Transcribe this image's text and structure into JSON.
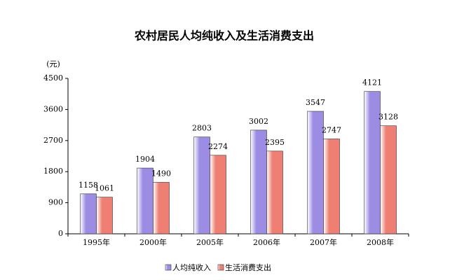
{
  "chart_data": {
    "type": "bar",
    "title": "农村居民人均纯收入及生活消费支出",
    "y_label": "(元)",
    "categories": [
      "1995年",
      "2000年",
      "2005年",
      "2006年",
      "2007年",
      "2008年"
    ],
    "series": [
      {
        "name": "人均纯收入",
        "color": "#9d8ce4",
        "values": [
          1158,
          1904,
          2803,
          3002,
          3547,
          4121
        ]
      },
      {
        "name": "生活消费支出",
        "color": "#ee7f72",
        "values": [
          1061,
          1490,
          2274,
          2395,
          2747,
          3128
        ]
      }
    ],
    "ylim": [
      0,
      4500
    ],
    "yticks": [
      0,
      900,
      1800,
      2700,
      3600,
      4500
    ],
    "grid": false
  }
}
